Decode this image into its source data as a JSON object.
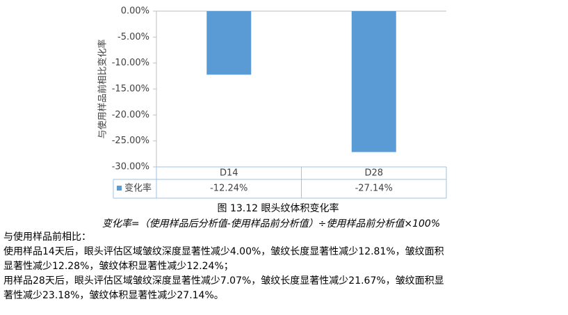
{
  "chart_data": {
    "type": "bar",
    "title": "图 13.12 眼头纹体积变化率",
    "y_label": "与使用样品前相比变化率",
    "categories": [
      "D14",
      "D28"
    ],
    "series": [
      {
        "name": "变化率",
        "color": "#5b9bd5",
        "values": [
          -12.24,
          -27.14
        ],
        "value_labels": [
          "-12.24%",
          "-27.14%"
        ]
      }
    ],
    "ylim": [
      -30,
      0
    ],
    "yticks": [
      {
        "value": 0,
        "label": "0.00%"
      },
      {
        "value": -5,
        "label": "-5.00%"
      },
      {
        "value": -10,
        "label": "-10.00%"
      },
      {
        "value": -15,
        "label": "-15.00%"
      },
      {
        "value": -20,
        "label": "-20.00%"
      },
      {
        "value": -25,
        "label": "-25.00%"
      },
      {
        "value": -30,
        "label": "-30.00%"
      }
    ],
    "grid": false,
    "legend": "table"
  },
  "text": {
    "formula": "变化率=（使用样品后分析值-使用样品前分析值）÷使用样品前分析值×100%",
    "lines": [
      "与使用样品前相比：",
      "使用样品14天后，眼头评估区域皱纹深度显著性减少4.00%，皱纹长度显著性减少12.81%，皱纹面积",
      "显著性减少12.28%，皱纹体积显著性减少12.24%；",
      "用样品28天后，眼头评估区域皱纹深度显著性减少7.07%，皱纹长度显著性减少21.67%，皱纹面积显",
      "著性减少23.18%，皱纹体积显著性减少27.14%。"
    ]
  }
}
